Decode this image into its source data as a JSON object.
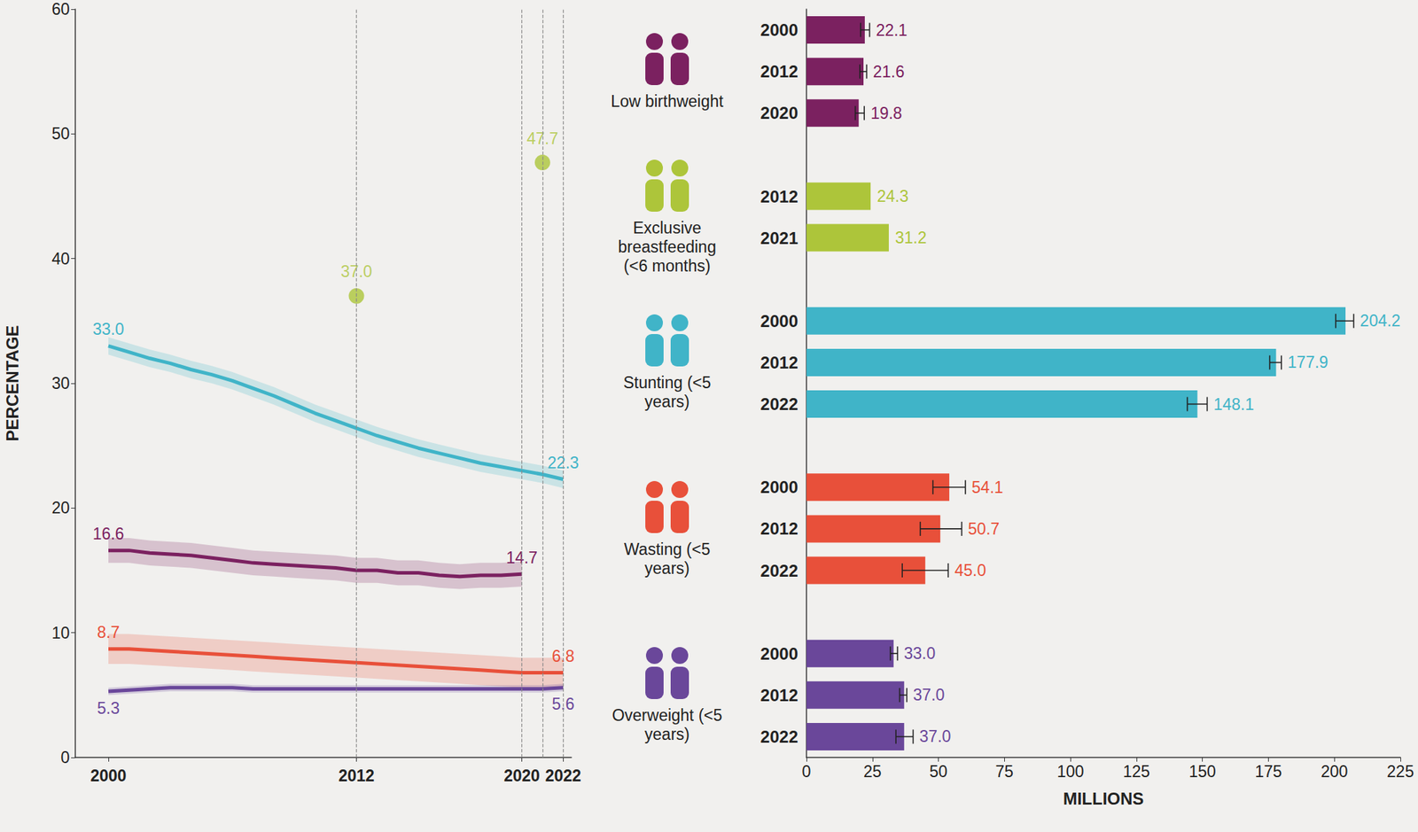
{
  "chart_data": [
    {
      "type": "line",
      "x": [
        2000,
        2001,
        2002,
        2003,
        2004,
        2005,
        2006,
        2007,
        2008,
        2009,
        2010,
        2011,
        2012,
        2013,
        2014,
        2015,
        2016,
        2017,
        2018,
        2019,
        2020,
        2021,
        2022
      ],
      "xlim": [
        1998.4,
        2022.4
      ],
      "xticks": [
        2000,
        2012,
        2020,
        2022
      ],
      "ylim": [
        0,
        60
      ],
      "yticks": [
        0,
        10,
        20,
        30,
        40,
        50,
        60
      ],
      "ylabel": "PERCENTAGE",
      "grid": false,
      "data_labels": true,
      "vlines": [
        2012,
        2020,
        2021,
        2022
      ],
      "series": [
        {
          "name": "Low birthweight",
          "color": "#7b2160",
          "type": "line",
          "values": [
            16.6,
            16.6,
            16.4,
            16.3,
            16.2,
            16.0,
            15.8,
            15.6,
            15.5,
            15.4,
            15.3,
            15.2,
            15.0,
            15.0,
            14.8,
            14.8,
            14.6,
            14.5,
            14.6,
            14.6,
            14.7,
            null,
            null
          ],
          "value_labels": [
            "16.6",
            null,
            null,
            null,
            null,
            null,
            null,
            null,
            null,
            null,
            null,
            null,
            null,
            null,
            null,
            null,
            null,
            null,
            null,
            null,
            "14.7",
            null,
            null
          ],
          "lower": [
            15.6,
            15.6,
            15.4,
            15.3,
            15.2,
            15.0,
            14.8,
            14.6,
            14.5,
            14.4,
            14.3,
            14.2,
            14.0,
            14.0,
            13.8,
            13.8,
            13.6,
            13.5,
            13.6,
            13.6,
            13.7,
            null,
            null
          ],
          "upper": [
            17.6,
            17.6,
            17.4,
            17.3,
            17.2,
            17.0,
            16.8,
            16.6,
            16.5,
            16.4,
            16.3,
            16.2,
            16.0,
            16.0,
            15.8,
            15.8,
            15.6,
            15.5,
            15.6,
            15.6,
            15.7,
            null,
            null
          ]
        },
        {
          "name": "Exclusive breastfeeding (<6 months)",
          "color": "#adc53a",
          "type": "scatter",
          "marker": "circle",
          "values": [
            null,
            null,
            null,
            null,
            null,
            null,
            null,
            null,
            null,
            null,
            null,
            null,
            37.0,
            null,
            null,
            null,
            null,
            null,
            null,
            null,
            null,
            47.7,
            null
          ],
          "value_labels": [
            null,
            null,
            null,
            null,
            null,
            null,
            null,
            null,
            null,
            null,
            null,
            null,
            "37.0",
            null,
            null,
            null,
            null,
            null,
            null,
            null,
            null,
            "47.7",
            null
          ]
        },
        {
          "name": "Stunting (<5 years)",
          "color": "#40b4c8",
          "type": "line",
          "values": [
            33.0,
            32.5,
            32.0,
            31.6,
            31.1,
            30.7,
            30.2,
            29.6,
            29.0,
            28.3,
            27.6,
            27.0,
            26.4,
            25.8,
            25.3,
            24.8,
            24.4,
            24.0,
            23.6,
            23.3,
            23.0,
            22.7,
            22.3
          ],
          "value_labels": [
            "33.0",
            null,
            null,
            null,
            null,
            null,
            null,
            null,
            null,
            null,
            null,
            null,
            null,
            null,
            null,
            null,
            null,
            null,
            null,
            null,
            null,
            null,
            "22.3"
          ],
          "lower": [
            32.3,
            31.8,
            31.3,
            30.9,
            30.4,
            30.0,
            29.5,
            28.9,
            28.3,
            27.6,
            26.9,
            26.3,
            25.7,
            25.1,
            24.6,
            24.1,
            23.7,
            23.3,
            22.9,
            22.6,
            22.3,
            22.0,
            21.6
          ],
          "upper": [
            33.7,
            33.2,
            32.7,
            32.3,
            31.8,
            31.4,
            30.9,
            30.3,
            29.7,
            29.0,
            28.3,
            27.7,
            27.1,
            26.5,
            26.0,
            25.5,
            25.1,
            24.7,
            24.3,
            24.0,
            23.7,
            23.4,
            23.0
          ]
        },
        {
          "name": "Wasting (<5 years)",
          "color": "#e8503a",
          "type": "line",
          "values": [
            8.7,
            8.7,
            8.6,
            8.5,
            8.4,
            8.3,
            8.2,
            8.1,
            8.0,
            7.9,
            7.8,
            7.7,
            7.6,
            7.5,
            7.4,
            7.3,
            7.2,
            7.1,
            7.0,
            6.9,
            6.8,
            6.8,
            6.8
          ],
          "value_labels": [
            "8.7",
            null,
            null,
            null,
            null,
            null,
            null,
            null,
            null,
            null,
            null,
            null,
            null,
            null,
            null,
            null,
            null,
            null,
            null,
            null,
            null,
            null,
            "6.8"
          ],
          "lower": [
            7.5,
            7.5,
            7.4,
            7.3,
            7.2,
            7.1,
            7.0,
            6.9,
            6.8,
            6.7,
            6.6,
            6.5,
            6.4,
            6.3,
            6.2,
            6.1,
            6.0,
            5.9,
            5.8,
            5.7,
            5.6,
            5.6,
            5.6
          ],
          "upper": [
            9.9,
            9.9,
            9.8,
            9.7,
            9.6,
            9.5,
            9.4,
            9.3,
            9.2,
            9.1,
            9.0,
            8.9,
            8.8,
            8.7,
            8.6,
            8.5,
            8.4,
            8.3,
            8.2,
            8.1,
            8.0,
            8.0,
            8.0
          ]
        },
        {
          "name": "Overweight (<5 years)",
          "color": "#6a479a",
          "type": "line",
          "values": [
            5.3,
            5.4,
            5.5,
            5.6,
            5.6,
            5.6,
            5.6,
            5.5,
            5.5,
            5.5,
            5.5,
            5.5,
            5.5,
            5.5,
            5.5,
            5.5,
            5.5,
            5.5,
            5.5,
            5.5,
            5.5,
            5.5,
            5.6
          ],
          "value_labels": [
            "5.3",
            null,
            null,
            null,
            null,
            null,
            null,
            null,
            null,
            null,
            null,
            null,
            null,
            null,
            null,
            null,
            null,
            null,
            null,
            null,
            null,
            null,
            "5.6"
          ],
          "lower": [
            5.0,
            5.1,
            5.2,
            5.3,
            5.3,
            5.3,
            5.3,
            5.2,
            5.2,
            5.2,
            5.2,
            5.2,
            5.2,
            5.2,
            5.2,
            5.2,
            5.2,
            5.2,
            5.2,
            5.2,
            5.2,
            5.2,
            5.3
          ],
          "upper": [
            5.6,
            5.7,
            5.8,
            5.9,
            5.9,
            5.9,
            5.9,
            5.8,
            5.8,
            5.8,
            5.8,
            5.8,
            5.8,
            5.8,
            5.8,
            5.8,
            5.8,
            5.8,
            5.8,
            5.8,
            5.8,
            5.8,
            5.9
          ]
        }
      ]
    },
    {
      "type": "bar",
      "orientation": "horizontal",
      "categories": [
        "2000",
        "2012",
        "2020",
        null,
        "2012",
        "2021",
        null,
        "2000",
        "2012",
        "2022",
        null,
        "2000",
        "2012",
        "2022",
        null,
        "2000",
        "2012",
        "2022"
      ],
      "xlim": [
        0,
        225
      ],
      "xticks": [
        0,
        25,
        50,
        75,
        100,
        125,
        150,
        175,
        200,
        225
      ],
      "xlabel": "MILLIONS",
      "grid": false,
      "data_labels": true,
      "series": [
        {
          "name": "Low birthweight",
          "color": "#7b2160",
          "values": [
            22.1,
            21.6,
            19.8,
            null,
            null,
            null,
            null,
            null,
            null,
            null,
            null,
            null,
            null,
            null,
            null,
            null,
            null,
            null
          ],
          "value_labels": [
            "22.1",
            "21.6",
            "19.8",
            null,
            null,
            null,
            null,
            null,
            null,
            null,
            null,
            null,
            null,
            null,
            null,
            null,
            null,
            null
          ],
          "errors": [
            [
              20.5,
              23.9
            ],
            [
              20.2,
              22.8
            ],
            [
              18.5,
              21.9
            ],
            null,
            null,
            null,
            null,
            null,
            null,
            null,
            null,
            null,
            null,
            null,
            null,
            null,
            null,
            null
          ]
        },
        {
          "name": "Exclusive breastfeeding (<6 months)",
          "color": "#adc53a",
          "values": [
            null,
            null,
            null,
            null,
            24.3,
            31.2,
            null,
            null,
            null,
            null,
            null,
            null,
            null,
            null,
            null,
            null,
            null,
            null
          ],
          "value_labels": [
            null,
            null,
            null,
            null,
            "24.3",
            "31.2",
            null,
            null,
            null,
            null,
            null,
            null,
            null,
            null,
            null,
            null,
            null,
            null
          ]
        },
        {
          "name": "Stunting (<5 years)",
          "color": "#40b4c8",
          "values": [
            null,
            null,
            null,
            null,
            null,
            null,
            null,
            204.2,
            177.9,
            148.1,
            null,
            null,
            null,
            null,
            null,
            null,
            null,
            null
          ],
          "value_labels": [
            null,
            null,
            null,
            null,
            null,
            null,
            null,
            "204.2",
            "177.9",
            "148.1",
            null,
            null,
            null,
            null,
            null,
            null,
            null,
            null
          ],
          "errors": [
            null,
            null,
            null,
            null,
            null,
            null,
            null,
            [
              200.5,
              207.3
            ],
            [
              175.5,
              179.9
            ],
            [
              144.3,
              151.8
            ],
            null,
            null,
            null,
            null,
            null,
            null,
            null,
            null
          ]
        },
        {
          "name": "Wasting (<5 years)",
          "color": "#e8503a",
          "values": [
            null,
            null,
            null,
            null,
            null,
            null,
            null,
            null,
            null,
            null,
            null,
            54.1,
            50.7,
            45.0,
            null,
            null,
            null,
            null
          ],
          "value_labels": [
            null,
            null,
            null,
            null,
            null,
            null,
            null,
            null,
            null,
            null,
            null,
            "54.1",
            "50.7",
            "45.0",
            null,
            null,
            null,
            null
          ],
          "errors": [
            null,
            null,
            null,
            null,
            null,
            null,
            null,
            null,
            null,
            null,
            null,
            [
              47.9,
              60.2
            ],
            [
              43.1,
              58.8
            ],
            [
              36.3,
              53.7
            ],
            null,
            null,
            null,
            null
          ]
        },
        {
          "name": "Overweight (<5 years)",
          "color": "#6a479a",
          "values": [
            null,
            null,
            null,
            null,
            null,
            null,
            null,
            null,
            null,
            null,
            null,
            null,
            null,
            null,
            null,
            33.0,
            37.0,
            37.0
          ],
          "value_labels": [
            null,
            null,
            null,
            null,
            null,
            null,
            null,
            null,
            null,
            null,
            null,
            null,
            null,
            null,
            null,
            "33.0",
            "37.0",
            "37.0"
          ],
          "errors": [
            null,
            null,
            null,
            null,
            null,
            null,
            null,
            null,
            null,
            null,
            null,
            null,
            null,
            null,
            null,
            [
              31.8,
              34.5
            ],
            [
              35.3,
              38.0
            ],
            [
              33.9,
              40.4
            ]
          ]
        }
      ]
    }
  ]
}
